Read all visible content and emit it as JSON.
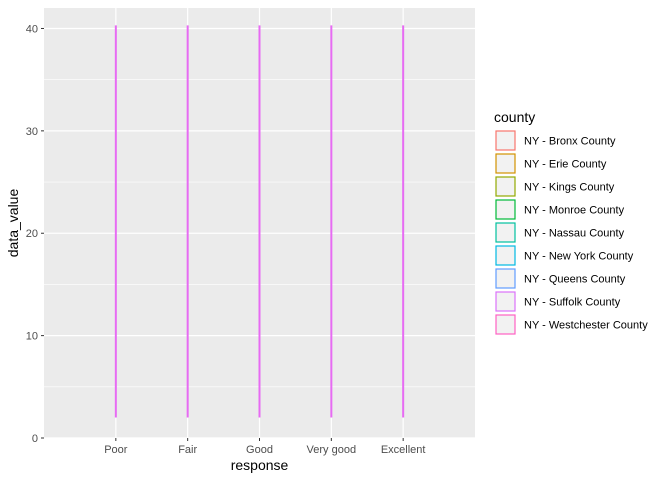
{
  "chart_data": {
    "type": "boxplot",
    "title": "",
    "xlabel": "response",
    "ylabel": "data_value",
    "categories": [
      "Poor",
      "Fair",
      "Good",
      "Very good",
      "Excellent"
    ],
    "ylim": [
      0,
      42
    ],
    "yticks": [
      0,
      10,
      20,
      30,
      40
    ],
    "grid": true,
    "legend": {
      "title": "county",
      "position": "right",
      "entries": [
        {
          "name": "NY - Bronx County",
          "color": "#F8766D"
        },
        {
          "name": "NY - Erie County",
          "color": "#D39200"
        },
        {
          "name": "NY - Kings County",
          "color": "#93AA00"
        },
        {
          "name": "NY - Monroe County",
          "color": "#00BA38"
        },
        {
          "name": "NY - Nassau County",
          "color": "#00C19F"
        },
        {
          "name": "NY - New York County",
          "color": "#00B9E3"
        },
        {
          "name": "NY - Queens County",
          "color": "#619CFF"
        },
        {
          "name": "NY - Suffolk County",
          "color": "#DB72FB"
        },
        {
          "name": "NY - Westchester County",
          "color": "#FF61C3"
        }
      ]
    },
    "whiskers": [
      {
        "category": "Poor",
        "min": 2,
        "max": 40.3
      },
      {
        "category": "Fair",
        "min": 2,
        "max": 40.3
      },
      {
        "category": "Good",
        "min": 2,
        "max": 40.3
      },
      {
        "category": "Very good",
        "min": 2,
        "max": 40.3
      },
      {
        "category": "Excellent",
        "min": 2,
        "max": 40.3
      }
    ],
    "whisker_color": "#E76BF3",
    "panel_background": "#EBEBEB"
  }
}
